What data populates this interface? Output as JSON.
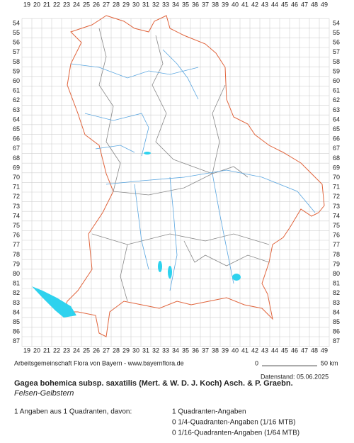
{
  "grid": {
    "columns": [
      19,
      20,
      21,
      22,
      23,
      24,
      25,
      26,
      27,
      28,
      29,
      30,
      31,
      32,
      33,
      34,
      35,
      36,
      37,
      38,
      39,
      40,
      41,
      42,
      43,
      44,
      45,
      46,
      47,
      48,
      49
    ],
    "rows": [
      54,
      55,
      56,
      57,
      58,
      59,
      60,
      61,
      62,
      63,
      64,
      65,
      66,
      67,
      68,
      69,
      70,
      71,
      72,
      73,
      74,
      75,
      76,
      77,
      78,
      79,
      80,
      81,
      82,
      83,
      84,
      85,
      86,
      87
    ]
  },
  "footer": {
    "credit": "Arbeitsgemeinschaft Flora von Bayern - www.bayernflora.de",
    "scale_start": "0",
    "scale_end": "50 km",
    "date": "Datenstand: 05.06.2025"
  },
  "species": {
    "name": "Gagea bohemica subsp. saxatilis (Mert. & W. D. J. Koch) Asch. & P. Graebn.",
    "common_name": "Felsen-Gelbstern"
  },
  "summary": {
    "total": "1 Angaben aus 1 Quadranten, davon:",
    "lines": [
      "1 Quadranten-Angaben",
      "0 1/4-Quadranten-Angaben (1/16 MTB)",
      "0 1/16-Quadranten-Angaben (1/64 MTB)"
    ]
  }
}
